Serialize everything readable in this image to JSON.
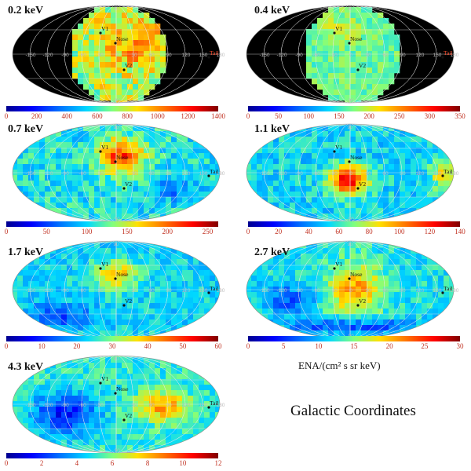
{
  "title": "Galactic Coordinates",
  "unit_label": "ENA/(cm² s sr keV)",
  "map_labels": {
    "v1": "V1",
    "v2": "V2",
    "nose": "Nose",
    "tail": "Tail",
    "lat_top": "90",
    "lat_bottom": "-90",
    "lon": [
      "180",
      "150",
      "120",
      "90",
      "60",
      "30",
      "0",
      "-30",
      "-60",
      "-90",
      "-120",
      "-150"
    ]
  },
  "panels": [
    {
      "energy": "0.2 keV",
      "ticks": [
        "0",
        "200",
        "400",
        "600",
        "800",
        "1000",
        "1200",
        "1400"
      ],
      "coverage": "partial",
      "pattern": "orange"
    },
    {
      "energy": "0.4 keV",
      "ticks": [
        "0",
        "50",
        "100",
        "150",
        "200",
        "250",
        "300",
        "350"
      ],
      "coverage": "partial",
      "pattern": "green"
    },
    {
      "energy": "0.7 keV",
      "ticks": [
        "0",
        "50",
        "100",
        "150",
        "200",
        "250"
      ],
      "coverage": "full",
      "pattern": "nose"
    },
    {
      "energy": "1.1 keV",
      "ticks": [
        "0",
        "20",
        "40",
        "60",
        "80",
        "100",
        "120",
        "140"
      ],
      "coverage": "full",
      "pattern": "center"
    },
    {
      "energy": "1.7 keV",
      "ticks": [
        "0",
        "10",
        "20",
        "30",
        "40",
        "50",
        "60"
      ],
      "coverage": "full",
      "pattern": "nose-cool"
    },
    {
      "energy": "2.7 keV",
      "ticks": [
        "0",
        "5",
        "10",
        "15",
        "20",
        "25",
        "30"
      ],
      "coverage": "full",
      "pattern": "ribbon"
    },
    {
      "energy": "4.3 keV",
      "ticks": [
        "0",
        "2",
        "4",
        "6",
        "8",
        "10",
        "12"
      ],
      "coverage": "full",
      "pattern": "tail"
    }
  ],
  "colors": {
    "sky": "#000000",
    "grid": "#e8e8e8",
    "tick_text": "#c03020"
  }
}
